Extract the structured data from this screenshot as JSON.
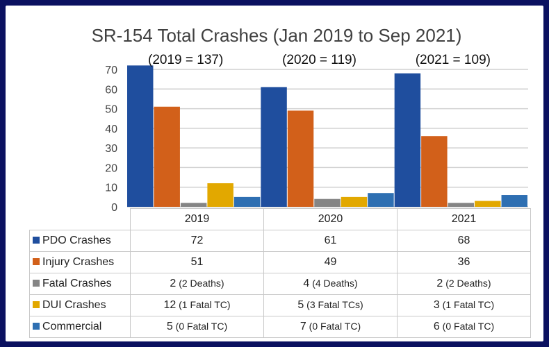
{
  "chart_data": {
    "type": "bar",
    "title": "SR-154 Total Crashes (Jan 2019 to Sep 2021)",
    "categories": [
      "2019",
      "2020",
      "2021"
    ],
    "annotations": [
      "(2019 = 137)",
      "(2020 = 119)",
      "(2021 = 109)"
    ],
    "ylim": [
      0,
      70
    ],
    "yticks": [
      0,
      10,
      20,
      30,
      40,
      50,
      60,
      70
    ],
    "grid": true,
    "legend": "data-table-below",
    "series": [
      {
        "name": "PDO Crashes",
        "color": "#1f4e9e",
        "values": [
          72,
          61,
          68
        ],
        "notes": [
          "",
          "",
          ""
        ]
      },
      {
        "name": "Injury Crashes",
        "color": "#d2601a",
        "values": [
          51,
          49,
          36
        ],
        "notes": [
          "",
          "",
          ""
        ]
      },
      {
        "name": "Fatal Crashes",
        "color": "#858585",
        "values": [
          2,
          4,
          2
        ],
        "notes": [
          "(2 Deaths)",
          "(4 Deaths)",
          "(2 Deaths)"
        ]
      },
      {
        "name": "DUI Crashes",
        "color": "#e2a800",
        "values": [
          12,
          5,
          3
        ],
        "notes": [
          "(1 Fatal TC)",
          "(3 Fatal TCs)",
          "(1 Fatal TC)"
        ]
      },
      {
        "name": "Commercial",
        "color": "#2e6fb2",
        "values": [
          5,
          7,
          6
        ],
        "notes": [
          "(0 Fatal TC)",
          "(0 Fatal TC)",
          "(0 Fatal TC)"
        ]
      }
    ]
  }
}
